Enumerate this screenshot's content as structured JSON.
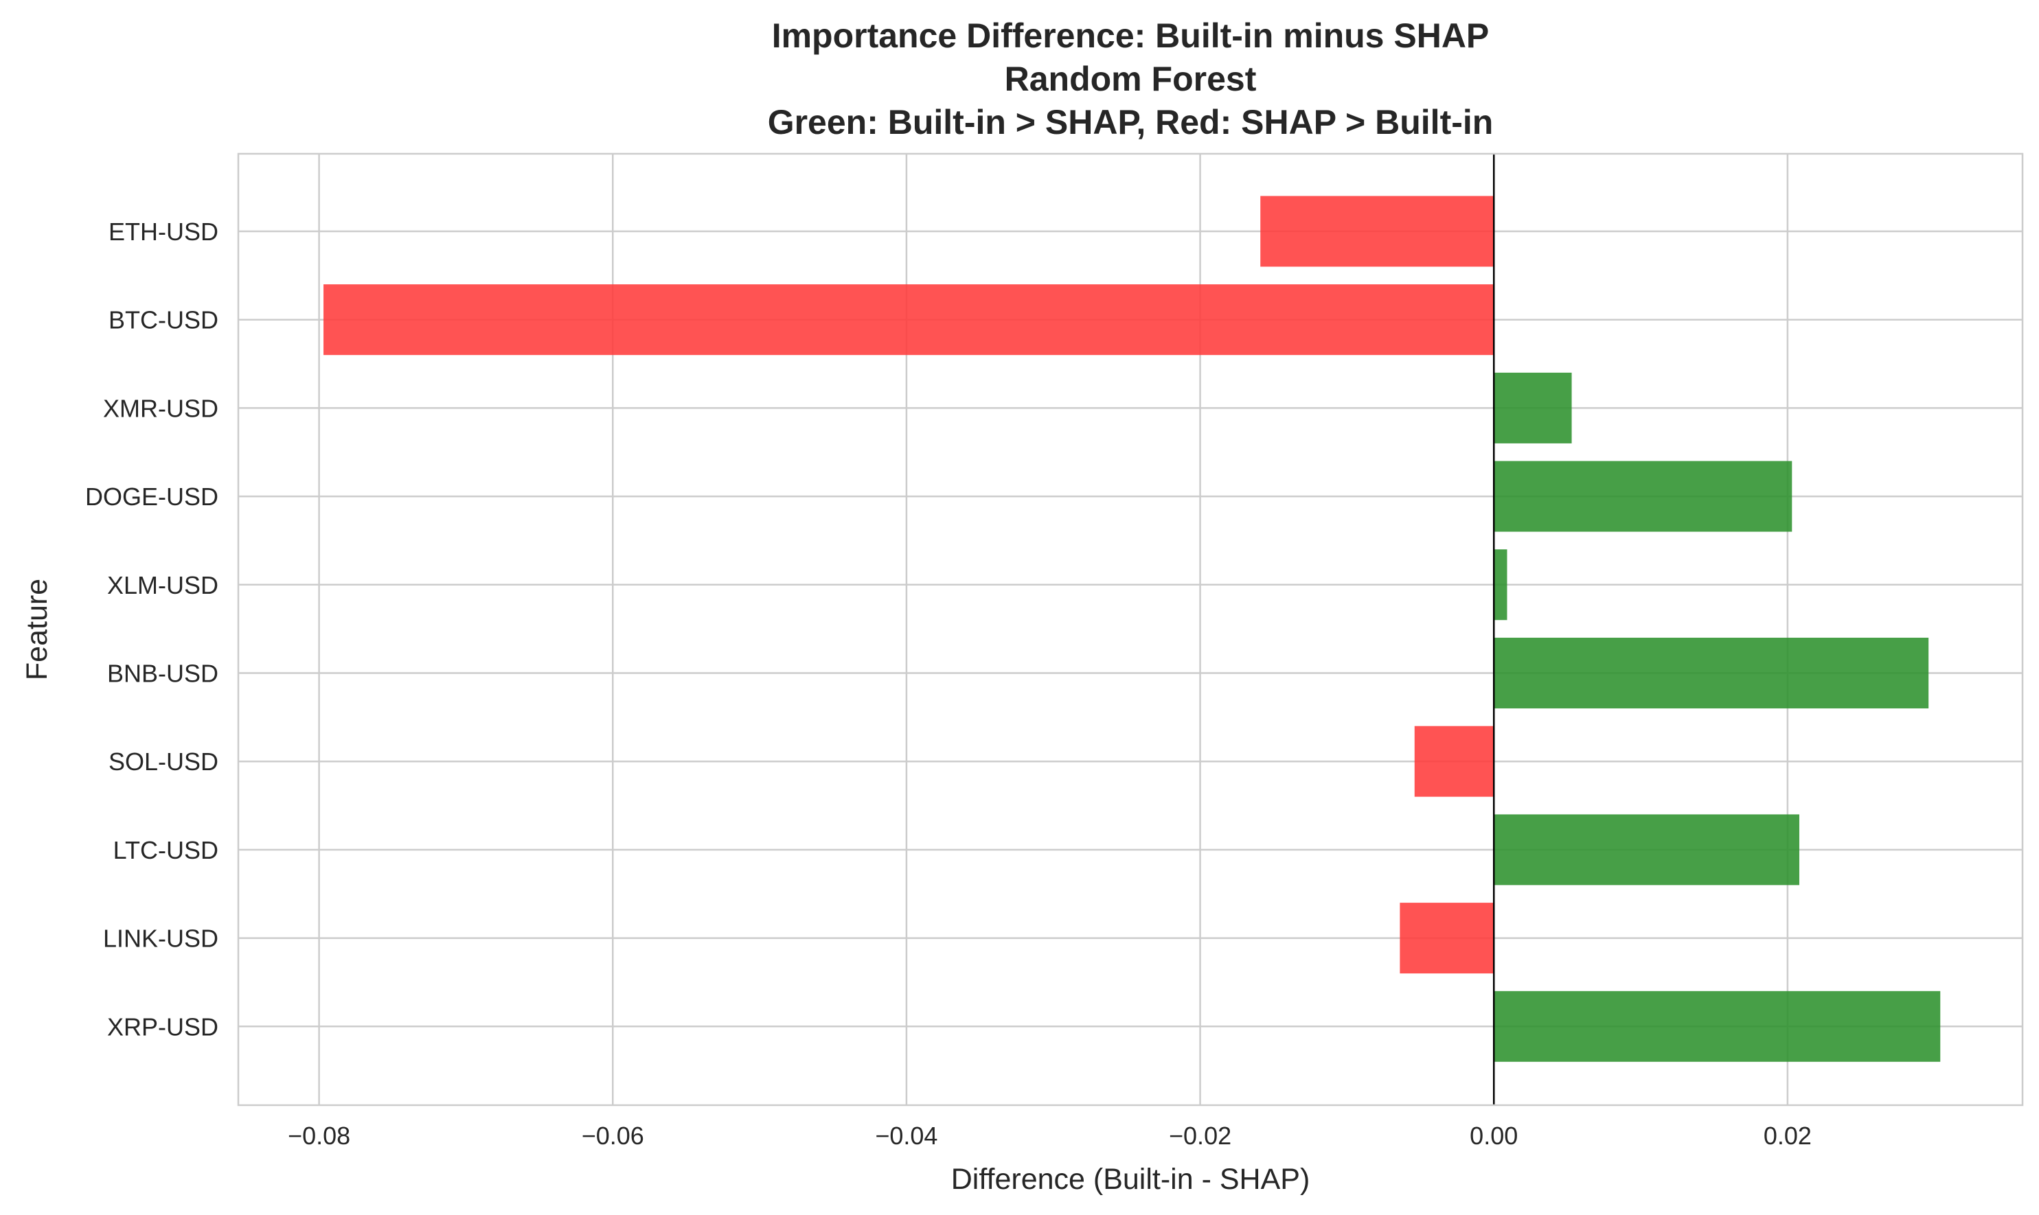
{
  "chart_data": {
    "type": "bar",
    "orientation": "horizontal",
    "title_lines": [
      "Importance Difference: Built-in minus SHAP",
      "Random Forest",
      "Green: Built-in > SHAP, Red: SHAP > Built-in"
    ],
    "xlabel": "Difference (Built-in - SHAP)",
    "ylabel": "Feature",
    "xlim": [
      -0.0855,
      0.036
    ],
    "xticks": [
      -0.08,
      -0.06,
      -0.04,
      -0.02,
      0.0,
      0.02
    ],
    "xtick_labels": [
      "−0.08",
      "−0.06",
      "−0.04",
      "−0.02",
      "0.00",
      "0.02"
    ],
    "categories": [
      "ETH-USD",
      "BTC-USD",
      "XMR-USD",
      "DOGE-USD",
      "XLM-USD",
      "BNB-USD",
      "SOL-USD",
      "LTC-USD",
      "LINK-USD",
      "XRP-USD"
    ],
    "values": [
      -0.0159,
      -0.0797,
      0.0053,
      0.0203,
      0.0009,
      0.0296,
      -0.0054,
      0.0208,
      -0.0064,
      0.0304
    ],
    "colors": {
      "positive": "#2e922e",
      "negative": "#ff3b3b",
      "zero_line": "#000000"
    },
    "grid": true,
    "legend": "none"
  }
}
